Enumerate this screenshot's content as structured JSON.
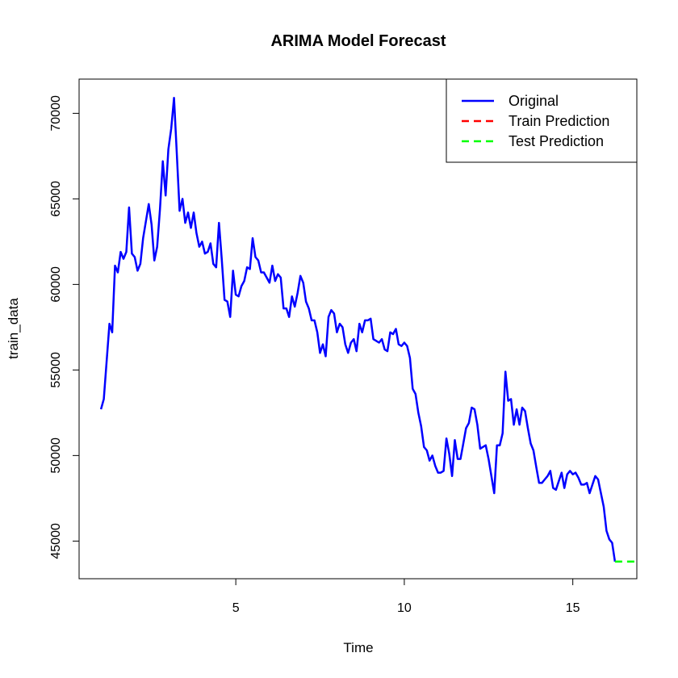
{
  "chart_data": {
    "type": "line",
    "title": "ARIMA Model Forecast",
    "xlabel": "Time",
    "ylabel": "train_data",
    "xlim": [
      0.35,
      16.9
    ],
    "ylim": [
      42800,
      72000
    ],
    "x_ticks": [
      5,
      10,
      15
    ],
    "y_ticks": [
      45000,
      50000,
      55000,
      60000,
      65000,
      70000
    ],
    "grid": false,
    "legend_position": "top-right",
    "legend": [
      {
        "label": "Original",
        "color": "#0000ff",
        "dash": "solid"
      },
      {
        "label": "Train Prediction",
        "color": "#ff0000",
        "dash": "dashed"
      },
      {
        "label": "Test Prediction",
        "color": "#00ff00",
        "dash": "dashed"
      }
    ],
    "series": [
      {
        "name": "Original",
        "color": "#0000ff",
        "dash": "solid",
        "points": [
          [
            1.0,
            52700
          ],
          [
            1.083,
            53300
          ],
          [
            1.167,
            55500
          ],
          [
            1.25,
            57700
          ],
          [
            1.333,
            57200
          ],
          [
            1.417,
            61100
          ],
          [
            1.5,
            60700
          ],
          [
            1.583,
            61900
          ],
          [
            1.667,
            61500
          ],
          [
            1.75,
            61900
          ],
          [
            1.833,
            64500
          ],
          [
            1.917,
            61800
          ],
          [
            2.0,
            61600
          ],
          [
            2.083,
            60800
          ],
          [
            2.167,
            61200
          ],
          [
            2.25,
            62700
          ],
          [
            2.333,
            63700
          ],
          [
            2.417,
            64700
          ],
          [
            2.5,
            63500
          ],
          [
            2.583,
            61400
          ],
          [
            2.667,
            62200
          ],
          [
            2.75,
            64400
          ],
          [
            2.833,
            67200
          ],
          [
            2.917,
            65200
          ],
          [
            3.0,
            67900
          ],
          [
            3.083,
            69100
          ],
          [
            3.167,
            70900
          ],
          [
            3.25,
            67600
          ],
          [
            3.333,
            64300
          ],
          [
            3.417,
            65000
          ],
          [
            3.5,
            63600
          ],
          [
            3.583,
            64200
          ],
          [
            3.667,
            63300
          ],
          [
            3.75,
            64200
          ],
          [
            3.833,
            63000
          ],
          [
            3.917,
            62200
          ],
          [
            4.0,
            62500
          ],
          [
            4.083,
            61800
          ],
          [
            4.167,
            61900
          ],
          [
            4.25,
            62400
          ],
          [
            4.333,
            61200
          ],
          [
            4.417,
            61000
          ],
          [
            4.5,
            63600
          ],
          [
            4.583,
            61500
          ],
          [
            4.667,
            59100
          ],
          [
            4.75,
            59000
          ],
          [
            4.833,
            58100
          ],
          [
            4.917,
            60800
          ],
          [
            5.0,
            59400
          ],
          [
            5.083,
            59300
          ],
          [
            5.167,
            59900
          ],
          [
            5.25,
            60200
          ],
          [
            5.333,
            61000
          ],
          [
            5.417,
            60900
          ],
          [
            5.5,
            62700
          ],
          [
            5.583,
            61600
          ],
          [
            5.667,
            61400
          ],
          [
            5.75,
            60700
          ],
          [
            5.833,
            60700
          ],
          [
            5.917,
            60400
          ],
          [
            6.0,
            60100
          ],
          [
            6.083,
            61100
          ],
          [
            6.167,
            60200
          ],
          [
            6.25,
            60600
          ],
          [
            6.333,
            60400
          ],
          [
            6.417,
            58600
          ],
          [
            6.5,
            58600
          ],
          [
            6.583,
            58100
          ],
          [
            6.667,
            59300
          ],
          [
            6.75,
            58700
          ],
          [
            6.833,
            59500
          ],
          [
            6.917,
            60500
          ],
          [
            7.0,
            60100
          ],
          [
            7.083,
            59000
          ],
          [
            7.167,
            58600
          ],
          [
            7.25,
            57900
          ],
          [
            7.333,
            57900
          ],
          [
            7.417,
            57200
          ],
          [
            7.5,
            56000
          ],
          [
            7.583,
            56500
          ],
          [
            7.667,
            55800
          ],
          [
            7.75,
            58100
          ],
          [
            7.833,
            58500
          ],
          [
            7.917,
            58300
          ],
          [
            8.0,
            57200
          ],
          [
            8.083,
            57700
          ],
          [
            8.167,
            57500
          ],
          [
            8.25,
            56500
          ],
          [
            8.333,
            56000
          ],
          [
            8.417,
            56600
          ],
          [
            8.5,
            56800
          ],
          [
            8.583,
            56100
          ],
          [
            8.667,
            57700
          ],
          [
            8.75,
            57200
          ],
          [
            8.833,
            57900
          ],
          [
            8.917,
            57900
          ],
          [
            9.0,
            58000
          ],
          [
            9.083,
            56800
          ],
          [
            9.167,
            56700
          ],
          [
            9.25,
            56600
          ],
          [
            9.333,
            56800
          ],
          [
            9.417,
            56200
          ],
          [
            9.5,
            56100
          ],
          [
            9.583,
            57200
          ],
          [
            9.667,
            57100
          ],
          [
            9.75,
            57400
          ],
          [
            9.833,
            56500
          ],
          [
            9.917,
            56400
          ],
          [
            10.0,
            56600
          ],
          [
            10.083,
            56400
          ],
          [
            10.167,
            55700
          ],
          [
            10.25,
            53900
          ],
          [
            10.333,
            53600
          ],
          [
            10.417,
            52500
          ],
          [
            10.5,
            51700
          ],
          [
            10.583,
            50500
          ],
          [
            10.667,
            50300
          ],
          [
            10.75,
            49700
          ],
          [
            10.833,
            50000
          ],
          [
            10.917,
            49400
          ],
          [
            11.0,
            49000
          ],
          [
            11.083,
            49000
          ],
          [
            11.167,
            49100
          ],
          [
            11.25,
            51000
          ],
          [
            11.333,
            50100
          ],
          [
            11.417,
            48800
          ],
          [
            11.5,
            50900
          ],
          [
            11.583,
            49800
          ],
          [
            11.667,
            49800
          ],
          [
            11.75,
            50700
          ],
          [
            11.833,
            51600
          ],
          [
            11.917,
            51900
          ],
          [
            12.0,
            52800
          ],
          [
            12.083,
            52700
          ],
          [
            12.167,
            51800
          ],
          [
            12.25,
            50400
          ],
          [
            12.333,
            50500
          ],
          [
            12.417,
            50600
          ],
          [
            12.5,
            49800
          ],
          [
            12.583,
            48800
          ],
          [
            12.667,
            47800
          ],
          [
            12.75,
            50600
          ],
          [
            12.833,
            50600
          ],
          [
            12.917,
            51300
          ],
          [
            13.0,
            54900
          ],
          [
            13.083,
            53200
          ],
          [
            13.167,
            53300
          ],
          [
            13.25,
            51800
          ],
          [
            13.333,
            52700
          ],
          [
            13.417,
            51800
          ],
          [
            13.5,
            52800
          ],
          [
            13.583,
            52600
          ],
          [
            13.667,
            51600
          ],
          [
            13.75,
            50700
          ],
          [
            13.833,
            50300
          ],
          [
            13.917,
            49300
          ],
          [
            14.0,
            48400
          ],
          [
            14.083,
            48400
          ],
          [
            14.167,
            48600
          ],
          [
            14.25,
            48800
          ],
          [
            14.333,
            49100
          ],
          [
            14.417,
            48100
          ],
          [
            14.5,
            48000
          ],
          [
            14.583,
            48500
          ],
          [
            14.667,
            49000
          ],
          [
            14.75,
            48100
          ],
          [
            14.833,
            48900
          ],
          [
            14.917,
            49100
          ],
          [
            15.0,
            48900
          ],
          [
            15.083,
            49000
          ],
          [
            15.167,
            48700
          ],
          [
            15.25,
            48300
          ],
          [
            15.333,
            48300
          ],
          [
            15.417,
            48400
          ],
          [
            15.5,
            47800
          ],
          [
            15.583,
            48300
          ],
          [
            15.667,
            48800
          ],
          [
            15.75,
            48600
          ],
          [
            15.833,
            47800
          ],
          [
            15.917,
            47000
          ],
          [
            16.0,
            45600
          ],
          [
            16.083,
            45100
          ],
          [
            16.167,
            44900
          ],
          [
            16.25,
            43800
          ]
        ]
      },
      {
        "name": "Test Prediction",
        "color": "#00ff00",
        "dash": "dashed",
        "points": [
          [
            16.25,
            43800
          ],
          [
            16.9,
            43800
          ]
        ]
      }
    ]
  }
}
